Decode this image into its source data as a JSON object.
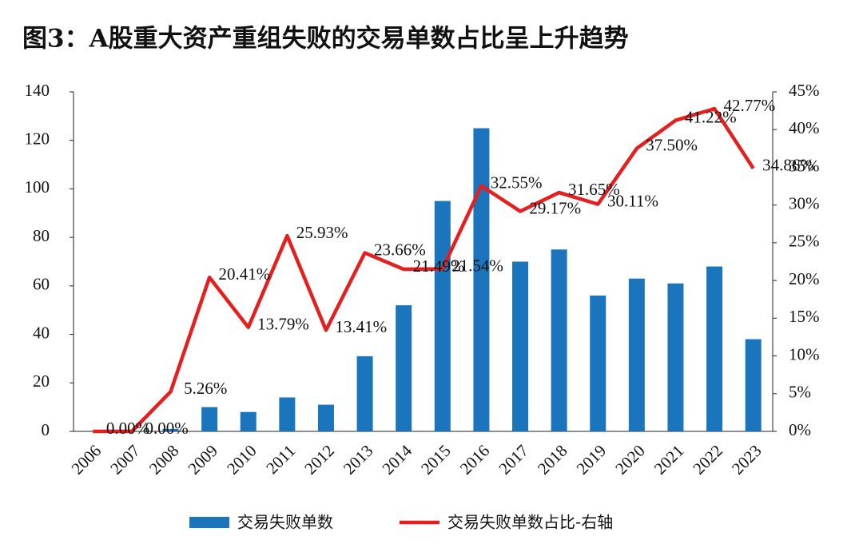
{
  "chart_data": {
    "type": "bar+line",
    "title": "图3：A股重大资产重组失败的交易单数占比呈上升趋势",
    "categories": [
      "2006",
      "2007",
      "2008",
      "2009",
      "2010",
      "2011",
      "2012",
      "2013",
      "2014",
      "2015",
      "2016",
      "2017",
      "2018",
      "2019",
      "2020",
      "2021",
      "2022",
      "2023"
    ],
    "series": [
      {
        "name": "交易失败单数",
        "type": "bar",
        "color": "#1a75bc",
        "axis": "y",
        "values": [
          0,
          0,
          1,
          10,
          8,
          14,
          11,
          31,
          52,
          95,
          125,
          70,
          75,
          56,
          63,
          61,
          68,
          38
        ]
      },
      {
        "name": "交易失败单数占比-右轴",
        "type": "line",
        "color": "#e61e1e",
        "axis": "y2",
        "values": [
          0,
          0,
          5.26,
          20.41,
          13.79,
          25.93,
          13.41,
          23.66,
          21.49,
          21.54,
          32.55,
          29.17,
          31.65,
          30.11,
          37.5,
          41.22,
          42.77,
          34.86
        ],
        "value_labels": [
          "0.00%",
          "0.00%",
          "5.26%",
          "20.41%",
          "13.79%",
          "25.93%",
          "13.41%",
          "23.66%",
          "21.49%",
          "21.54%",
          "32.55%",
          "29.17%",
          "31.65%",
          "30.11%",
          "37.50%",
          "41.22%",
          "42.77%",
          "34.86%"
        ]
      }
    ],
    "ylim": [
      0,
      140
    ],
    "yticks": [
      0,
      20,
      40,
      60,
      80,
      100,
      120,
      140
    ],
    "y2lim": [
      0,
      45
    ],
    "y2ticks": [
      {
        "value": 0,
        "label": "0%"
      },
      {
        "value": 5,
        "label": "5%"
      },
      {
        "value": 10,
        "label": "10%"
      },
      {
        "value": 15,
        "label": "15%"
      },
      {
        "value": 20,
        "label": "20%"
      },
      {
        "value": 25,
        "label": "25%"
      },
      {
        "value": 30,
        "label": "30%"
      },
      {
        "value": 35,
        "label": "35%"
      },
      {
        "value": 40,
        "label": "40%"
      },
      {
        "value": 45,
        "label": "45%"
      }
    ],
    "legend": "bottom"
  }
}
